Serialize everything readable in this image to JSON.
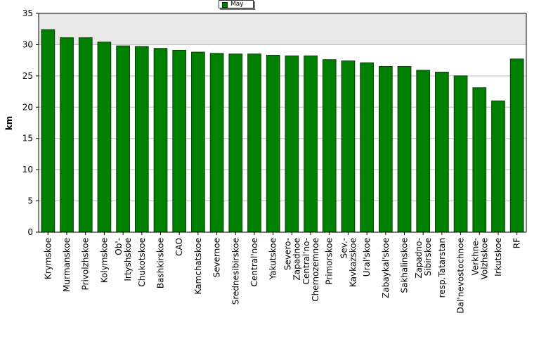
{
  "chart_data": {
    "type": "bar",
    "title": "",
    "xlabel": "",
    "ylabel": "km",
    "ylim": [
      0,
      35
    ],
    "yticks": [
      0,
      5,
      10,
      15,
      20,
      25,
      30,
      35
    ],
    "grid": true,
    "legend_position": "top-center",
    "colors": {
      "bar": "#008000",
      "bar_border": "#0a3a0a",
      "plot_background_top": "#e9e9e9",
      "plot_background": "#ffffff",
      "grid": "#bdbdbd"
    },
    "categories": [
      "Krymskoe",
      "Murmanskoe",
      "Privolzhskoe",
      "Kolymskoe",
      "Ob'-Irtyshskoe",
      "Chukotskoe",
      "Bashkirskoe",
      "CAO",
      "Kamchatskoe",
      "Severnoe",
      "Srednesibirskoe",
      "Central'noe",
      "Yakutskoe",
      "Severo-Zapadnoe",
      "Central'no-Chernozemnoe",
      "Primorskoe",
      "Sev.-Kavkazskoe",
      "Ural'skoe",
      "Zabaykal'skoe",
      "Sakhalinskoe",
      "Zapadno-Sibirskoe",
      "resp.Tatarstan",
      "Dal'nevostochnoe",
      "Verkhne-Volzhskoe",
      "Irkutskoe",
      "RF"
    ],
    "tick_labels": [
      [
        "Krymskoe"
      ],
      [
        "Murmanskoe"
      ],
      [
        "Privolzhskoe"
      ],
      [
        "Kolymskoe"
      ],
      [
        "Ob'-",
        "Irtyshskoe"
      ],
      [
        "Chukotskoe"
      ],
      [
        "Bashkirskoe"
      ],
      [
        "CAO"
      ],
      [
        "Kamchatskoe"
      ],
      [
        "Severnoe"
      ],
      [
        "Srednesibirskoe"
      ],
      [
        "Central'noe"
      ],
      [
        "Yakutskoe"
      ],
      [
        "Severo-",
        "Zapadnoe"
      ],
      [
        "Central'no-",
        "Chernozemnoe"
      ],
      [
        "Primorskoe"
      ],
      [
        "Sev.-",
        "Kavkazskoe"
      ],
      [
        "Ural'skoe"
      ],
      [
        "Zabaykal'skoe"
      ],
      [
        "Sakhalinskoe"
      ],
      [
        "Zapadno-",
        "Sibirskoe"
      ],
      [
        "resp.Tatarstan"
      ],
      [
        "Dal'nevostochnoe"
      ],
      [
        "Verkhne-",
        "Volzhskoe"
      ],
      [
        "Irkutskoe"
      ],
      [
        "RF"
      ]
    ],
    "series": [
      {
        "name": "May",
        "values": [
          32.4,
          31.1,
          31.1,
          30.4,
          29.8,
          29.7,
          29.4,
          29.1,
          28.8,
          28.6,
          28.5,
          28.5,
          28.3,
          28.2,
          28.2,
          27.6,
          27.4,
          27.1,
          26.5,
          26.5,
          25.9,
          25.6,
          25.0,
          23.1,
          21.0,
          27.7
        ]
      }
    ]
  }
}
